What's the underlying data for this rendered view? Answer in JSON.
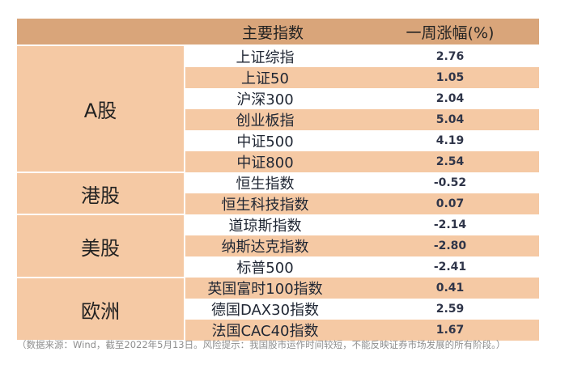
{
  "header": {
    "col1": "",
    "col2": "主要指数",
    "col3": "一周涨幅(%)"
  },
  "regions": [
    "A股",
    "港股",
    "美股",
    "欧洲"
  ],
  "rows": [
    {
      "name": "上证综指",
      "value": "2.76"
    },
    {
      "name": "上证50",
      "value": "1.05"
    },
    {
      "name": "沪深300",
      "value": "2.04"
    },
    {
      "name": "创业板指",
      "value": "5.04"
    },
    {
      "name": "中证500",
      "value": "4.19"
    },
    {
      "name": "中证800",
      "value": "2.54"
    },
    {
      "name": "恒生指数",
      "value": "-0.52"
    },
    {
      "name": "恒生科技指数",
      "value": "0.07"
    },
    {
      "name": "道琼斯指数",
      "value": "-2.14"
    },
    {
      "name": "纳斯达克指数",
      "value": "-2.80"
    },
    {
      "name": "标普500",
      "value": "-2.41"
    },
    {
      "name": "英国富时100指数",
      "value": "0.41"
    },
    {
      "name": "德国DAX30指数",
      "value": "2.59"
    },
    {
      "name": "法国CAC40指数",
      "value": "1.67"
    }
  ],
  "footnote": "（数据来源：Wind，截至2022年5月13日。风险提示：我国股市运作时间较短，不能反映证券市场发展的所有阶段。）",
  "colors": {
    "header_bg": "#d9a57a",
    "band_bg": "#f5c9a4",
    "white": "#ffffff"
  }
}
